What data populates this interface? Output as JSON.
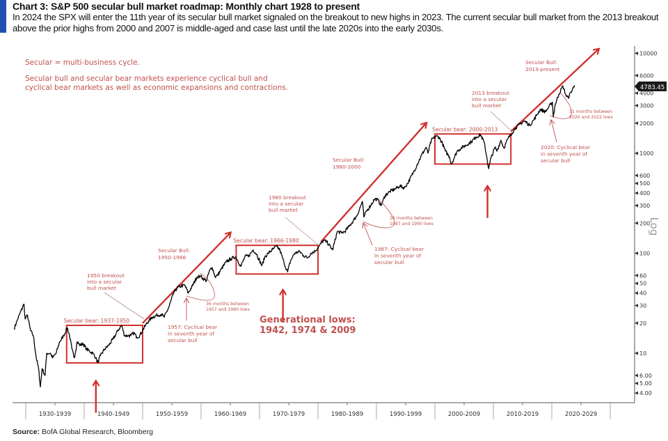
{
  "header": {
    "title": "Chart 3: S&P 500 secular bull market roadmap: Monthly chart 1928 to present",
    "subtitle": "In 2024 the SPX will enter the 11th year of its secular bull market signaled on the breakout to new highs in 2023. The current secular bull market from the 2013 breakout above the prior highs from 2000 and 2007 is middle-aged and case last until the late 2020s into the early 2030s."
  },
  "footer": {
    "source_label": "Source:",
    "source_text": "BofA Global Research, Bloomberg"
  },
  "colors": {
    "accent": "#1f4fb4",
    "annotation": "#c0504d",
    "price_line": "#000000",
    "last_price_badge": "#1a1a1a"
  },
  "chart_data": {
    "type": "line",
    "title": "S&P 500 Monthly chart 1928 to present",
    "xlabel": "",
    "ylabel": "",
    "yscale": "log",
    "yscale_label": "Log",
    "ylim": [
      3.5,
      12000
    ],
    "xlim": [
      1927,
      2031
    ],
    "grid": false,
    "y_ticks": [
      "10000",
      "6000",
      "4000",
      "3000",
      "2000",
      "1000",
      "600",
      "500",
      "400",
      "300",
      "200",
      "100",
      "60",
      "50",
      "40",
      "30",
      "20",
      "10",
      "6.00",
      "5.00",
      "4.00"
    ],
    "y_tick_values": [
      10000,
      6000,
      4000,
      3000,
      2000,
      1000,
      600,
      500,
      400,
      300,
      200,
      100,
      60,
      50,
      40,
      30,
      20,
      10,
      6,
      5,
      4
    ],
    "x_categories": [
      "1930-1939",
      "1940-1949",
      "1950-1959",
      "1960-1969",
      "1970-1979",
      "1980-1989",
      "1990-1999",
      "2000-2009",
      "2010-2019",
      "2020-2029"
    ],
    "last_price": "4783.45",
    "series": [
      {
        "name": "S&P 500",
        "x": [
          1928.0,
          1928.5,
          1929.0,
          1929.7,
          1929.9,
          1930.3,
          1930.8,
          1931.3,
          1931.8,
          1932.2,
          1932.5,
          1932.8,
          1933.3,
          1933.6,
          1934.2,
          1934.6,
          1935.2,
          1935.8,
          1936.5,
          1937.1,
          1937.5,
          1937.9,
          1938.3,
          1938.8,
          1939.3,
          1939.8,
          1940.4,
          1940.9,
          1941.5,
          1942.0,
          1942.3,
          1942.8,
          1943.5,
          1944.2,
          1945.0,
          1945.8,
          1946.4,
          1946.9,
          1947.5,
          1948.0,
          1948.5,
          1949.0,
          1949.5,
          1950.0,
          1950.5,
          1951.0,
          1951.7,
          1952.5,
          1953.2,
          1953.7,
          1954.5,
          1955.3,
          1955.9,
          1956.6,
          1957.2,
          1957.8,
          1958.5,
          1959.3,
          1959.9,
          1960.5,
          1960.9,
          1961.5,
          1961.9,
          1962.4,
          1962.8,
          1963.5,
          1964.3,
          1965.1,
          1965.9,
          1966.2,
          1966.8,
          1967.5,
          1968.2,
          1968.9,
          1969.5,
          1970.4,
          1970.9,
          1971.5,
          1972.3,
          1972.9,
          1973.5,
          1974.2,
          1974.8,
          1975.3,
          1976.0,
          1976.9,
          1977.5,
          1978.2,
          1978.8,
          1979.5,
          1980.2,
          1980.9,
          1981.5,
          1982.5,
          1983.3,
          1984.0,
          1984.6,
          1985.3,
          1986.0,
          1986.7,
          1987.6,
          1987.85,
          1988.3,
          1989.0,
          1989.7,
          1990.3,
          1990.8,
          1991.5,
          1992.3,
          1993.2,
          1994.0,
          1994.8,
          1995.5,
          1996.3,
          1997.0,
          1997.7,
          1998.5,
          1998.8,
          1999.4,
          2000.2,
          2000.7,
          2001.3,
          2001.8,
          2002.5,
          2002.8,
          2003.2,
          2003.8,
          2004.5,
          2005.3,
          2006.2,
          2007.0,
          2007.8,
          2008.4,
          2008.9,
          2009.2,
          2009.6,
          2010.3,
          2010.6,
          2011.3,
          2011.8,
          2012.5,
          2013.2,
          2013.8,
          2014.5,
          2015.3,
          2015.8,
          2016.2,
          2016.9,
          2017.5,
          2018.0,
          2018.9,
          2019.5,
          2020.1,
          2020.25,
          2020.6,
          2021.2,
          2021.9,
          2022.5,
          2022.8,
          2023.3,
          2023.9
        ],
        "y": [
          17.5,
          21,
          25,
          31,
          22,
          24,
          17,
          15,
          9,
          7,
          4.6,
          7,
          6,
          10,
          10,
          9,
          10,
          13,
          15,
          18,
          15,
          11,
          9,
          13,
          12,
          12.5,
          11,
          10.5,
          10,
          9,
          8,
          9.5,
          11,
          12,
          14,
          17,
          19,
          15,
          15,
          15,
          16,
          14.5,
          15,
          17,
          19,
          21,
          23,
          24,
          24.5,
          23,
          29,
          40,
          45,
          47,
          48,
          40,
          47,
          58,
          59,
          55,
          53,
          68,
          72,
          58,
          60,
          70,
          82,
          88,
          92,
          86,
          74,
          92,
          95,
          108,
          98,
          75,
          92,
          100,
          110,
          118,
          107,
          80,
          65,
          84,
          100,
          104,
          95,
          90,
          100,
          105,
          118,
          134,
          130,
          108,
          165,
          160,
          165,
          185,
          210,
          240,
          330,
          230,
          265,
          300,
          350,
          340,
          300,
          380,
          415,
          440,
          470,
          450,
          520,
          640,
          780,
          950,
          1150,
          1000,
          1350,
          1480,
          1450,
          1250,
          1050,
          920,
          780,
          870,
          1050,
          1130,
          1200,
          1300,
          1450,
          1530,
          1300,
          900,
          700,
          900,
          1150,
          1050,
          1350,
          1130,
          1400,
          1600,
          1800,
          1950,
          2100,
          2000,
          1900,
          2150,
          2450,
          2750,
          2600,
          2900,
          3250,
          2300,
          3100,
          3900,
          4700,
          3700,
          3600,
          4100,
          4780
        ]
      }
    ],
    "boxes": [
      {
        "label": "Secular bear: 1937-1950",
        "from": 1937,
        "to": 1950,
        "low": 8,
        "high": 19
      },
      {
        "label": "Secular bear: 1966-1980",
        "from": 1966,
        "to": 1980,
        "low": 62,
        "high": 120
      },
      {
        "label": "Secular bear: 2000-2013",
        "from": 2000,
        "to": 2013,
        "low": 780,
        "high": 1560
      }
    ],
    "trend_arrows": [
      {
        "label": "Secular Bull: 1950-1966",
        "from": [
          1950,
          20
        ],
        "to": [
          1965,
          160
        ]
      },
      {
        "label": "Secular Bull: 1980-2000",
        "from": [
          1980.5,
          130
        ],
        "to": [
          1998.5,
          2000
        ]
      },
      {
        "label": "Secular Bull: 2013-present",
        "from": [
          2013,
          1650
        ],
        "to": [
          2028,
          11000
        ]
      }
    ],
    "generational_low_arrows": [
      1942,
      1974,
      2009
    ],
    "annotations": [
      {
        "id": "note1",
        "text": "Secular = multi-business cycle."
      },
      {
        "id": "note2",
        "lines": [
          "Secular bull and secular bear markets experience cyclical bull and",
          "cyclical bear markets as well as economic expansions and contractions."
        ]
      },
      {
        "id": "breakout1950",
        "lines": [
          "1950 breakout",
          "into a secular",
          "bull market"
        ]
      },
      {
        "id": "bull1950",
        "lines": [
          "Secular Bull:",
          "1950-1966"
        ]
      },
      {
        "id": "cyc1957",
        "lines": [
          "1957: Cyclical bear",
          "in seventh year of",
          "secular bull"
        ]
      },
      {
        "id": "months1957",
        "lines": [
          "36 months between",
          "1957 and 1960 lows"
        ]
      },
      {
        "id": "genlows",
        "lines": [
          "Generational lows:",
          "1942, 1974 & 2009"
        ]
      },
      {
        "id": "breakout1980",
        "lines": [
          "1980 breakout",
          "into a secular",
          "bull market"
        ]
      },
      {
        "id": "bull1980",
        "lines": [
          "Secular Bull:",
          "1980-2000"
        ]
      },
      {
        "id": "cyc1987",
        "lines": [
          "1987: Cyclical bear",
          "in seventh year of",
          "secular bull"
        ]
      },
      {
        "id": "months1987",
        "lines": [
          "36 months between",
          "1987 and 1990 lows"
        ]
      },
      {
        "id": "breakout2013",
        "lines": [
          "2013 breakout",
          "into a secular",
          "bull market"
        ]
      },
      {
        "id": "bull2013",
        "lines": [
          "Secular Bull:",
          "2013-present"
        ]
      },
      {
        "id": "cyc2020",
        "lines": [
          "2020: Cyclical bear",
          "in seventh year of",
          "secular bull"
        ]
      },
      {
        "id": "months2020",
        "lines": [
          "31 months between",
          "2020 and 2022 lows"
        ]
      }
    ]
  }
}
